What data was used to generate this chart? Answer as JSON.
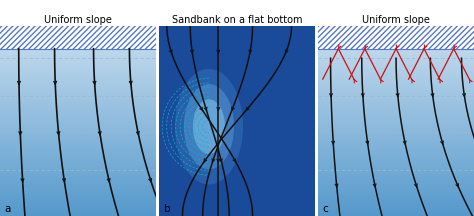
{
  "title_a": "Uniform slope",
  "title_b": "Sandbank on a flat bottom",
  "title_c": "Uniform slope",
  "label_a": "a",
  "label_b": "b",
  "label_c": "c",
  "bg_dark_blue": "#1a4a9a",
  "bg_light_top": "#c8dff0",
  "bg_light_bottom": "#6aaad0",
  "hatch_facecolor": "#ffffff",
  "hatch_edgecolor": "#5577cc",
  "ray_color": "#111111",
  "red_ray_color": "#cc1111",
  "wavefront_dashed_ab": "#7aaabb",
  "wavefront_dashed_c": "#88aacc",
  "sandbank_color": "#5588bb",
  "sandbank_ring_color": "#00cccc",
  "title_fontsize": 7.0,
  "label_fontsize": 7.5
}
